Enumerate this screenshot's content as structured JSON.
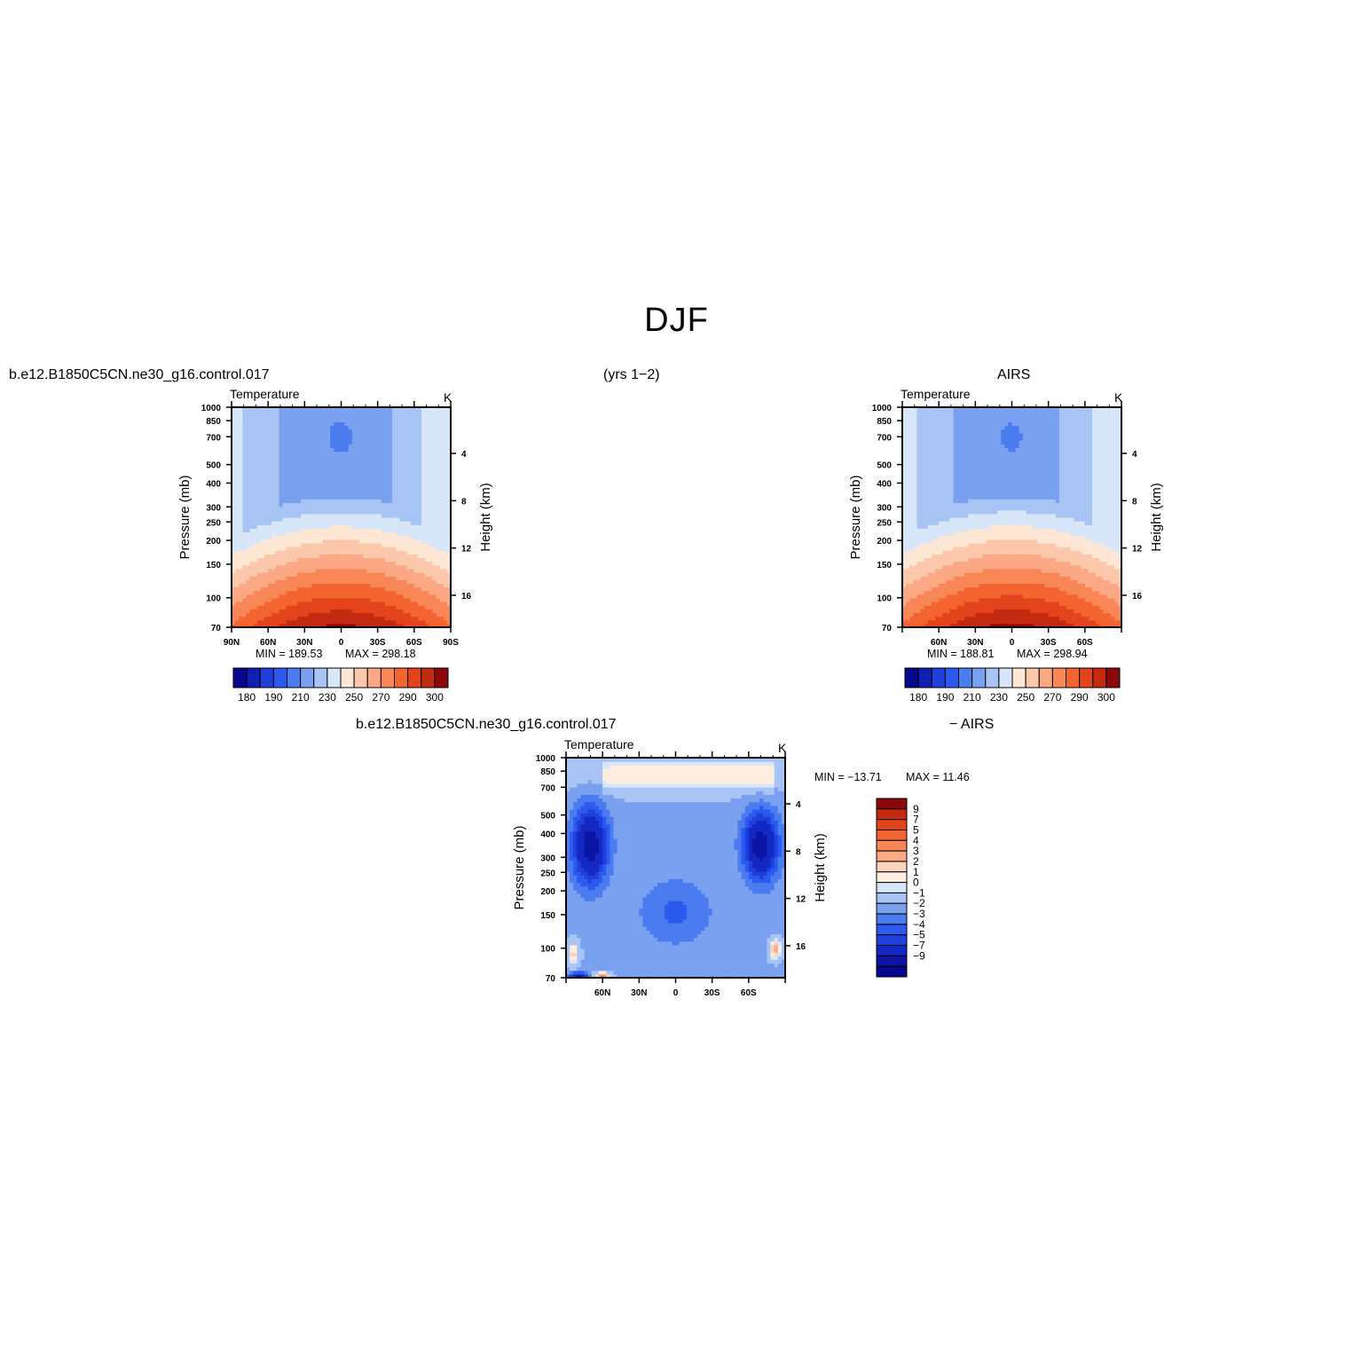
{
  "figure": {
    "title": "DJF",
    "case_name": "b.e12.B1850C5CN.ne30_g16.control.017",
    "years": "(yrs 1−2)",
    "obs_name": "AIRS",
    "diff_suffix": "− AIRS"
  },
  "colors": {
    "abs_levels": [
      "#08088c",
      "#1020b4",
      "#1e40dc",
      "#2c5af0",
      "#4a7cf0",
      "#7aa0f0",
      "#a8c4f4",
      "#d8e6fa",
      "#fde6d4",
      "#fcc8ac",
      "#fba884",
      "#f98656",
      "#f46430",
      "#e4441c",
      "#c42a10",
      "#8c0808"
    ],
    "diff_levels": [
      "#08088c",
      "#0c14a4",
      "#1428c4",
      "#1e40dc",
      "#2c5af0",
      "#4a7cf0",
      "#7aa0f0",
      "#a8c4f4",
      "#d8e6fa",
      "#fdeee0",
      "#fcd4bc",
      "#fba884",
      "#f98656",
      "#f46430",
      "#e4441c",
      "#c42a10",
      "#8c0808"
    ]
  },
  "chart_data": [
    {
      "type": "heatmap",
      "panel": "model",
      "title": "Temperature",
      "units": "K",
      "ylabel": "Pressure (mb)",
      "y2label": "Height (km)",
      "x_ticks": [
        "90N",
        "60N",
        "30N",
        "0",
        "30S",
        "60S",
        "90S"
      ],
      "x_range": [
        90,
        -90
      ],
      "y_ticks": [
        70,
        100,
        150,
        200,
        250,
        300,
        400,
        500,
        700,
        850,
        1000
      ],
      "y_range": [
        1000,
        70
      ],
      "y_scale": "log",
      "y2_ticks": [
        16,
        12,
        8,
        4
      ],
      "min_label": "MIN =  189.53",
      "max_label": "MAX =  298.18",
      "min": 189.53,
      "max": 298.18,
      "colorbar": {
        "orientation": "horizontal",
        "labels": [
          "180",
          "190",
          "210",
          "230",
          "250",
          "270",
          "290",
          "300"
        ]
      }
    },
    {
      "type": "heatmap",
      "panel": "obs",
      "title": "Temperature",
      "units": "K",
      "ylabel": "Pressure (mb)",
      "y2label": "Height (km)",
      "x_ticks": [
        "60N",
        "30N",
        "0",
        "30S",
        "60S"
      ],
      "x_range": [
        90,
        -90
      ],
      "y_ticks": [
        70,
        100,
        150,
        200,
        250,
        300,
        400,
        500,
        700,
        850,
        1000
      ],
      "y_range": [
        1000,
        70
      ],
      "y_scale": "log",
      "y2_ticks": [
        16,
        12,
        8,
        4
      ],
      "min_label": "MIN =  188.81",
      "max_label": "MAX =  298.94",
      "min": 188.81,
      "max": 298.94,
      "colorbar": {
        "orientation": "horizontal",
        "labels": [
          "180",
          "190",
          "210",
          "230",
          "250",
          "270",
          "290",
          "300"
        ]
      }
    },
    {
      "type": "heatmap",
      "panel": "diff",
      "title": "Temperature",
      "units": "K",
      "ylabel": "Pressure (mb)",
      "y2label": "Height (km)",
      "x_ticks": [
        "60N",
        "30N",
        "0",
        "30S",
        "60S"
      ],
      "x_range": [
        90,
        -90
      ],
      "y_ticks": [
        70,
        100,
        150,
        200,
        250,
        300,
        400,
        500,
        700,
        850,
        1000
      ],
      "y_range": [
        1000,
        70
      ],
      "y_scale": "log",
      "y2_ticks": [
        16,
        12,
        8,
        4
      ],
      "min_label": "MIN = −13.71",
      "max_label": "MAX =   11.46",
      "min": -13.71,
      "max": 11.46,
      "colorbar": {
        "orientation": "vertical",
        "labels": [
          "9",
          "7",
          "5",
          "4",
          "3",
          "2",
          "1",
          "0",
          "−1",
          "−2",
          "−3",
          "−4",
          "−5",
          "−7",
          "−9"
        ]
      }
    }
  ]
}
